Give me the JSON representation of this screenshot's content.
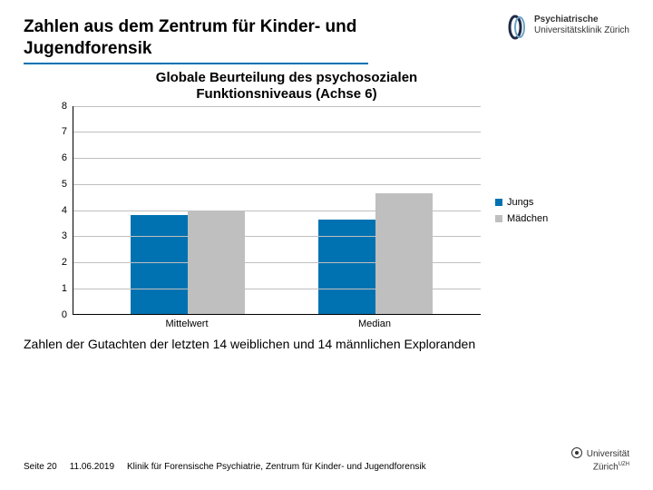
{
  "header": {
    "title_line1": "Zahlen aus dem Zentrum für Kinder- und",
    "title_line2": "Jugendforensik",
    "underline_color": "#0072b1"
  },
  "brand": {
    "line1": "Psychiatrische",
    "line2": "Universitätsklinik Zürich",
    "icon_color_dark": "#1f2a44",
    "icon_color_accent": "#6fa4c8"
  },
  "chart": {
    "type": "bar",
    "title_line1": "Globale Beurteilung des psychosozialen",
    "title_line2": "Funktionsniveaus (Achse 6)",
    "ylim": [
      0,
      8
    ],
    "ytick_step": 1,
    "grid_color": "#bfbfbf",
    "axis_color": "#000000",
    "background_color": "#ffffff",
    "categories": [
      "Mittelwert",
      "Median"
    ],
    "series": [
      {
        "name": "Jungs",
        "color": "#0072b1",
        "values": [
          3.78,
          3.6
        ]
      },
      {
        "name": "Mädchen",
        "color": "#bfbfbf",
        "values": [
          3.92,
          4.6
        ]
      }
    ],
    "bar_width_pct": 14,
    "group_gap_pct": 0,
    "legend_marker": "■",
    "title_fontsize": 15,
    "tick_fontsize": 11,
    "legend_fontsize": 11
  },
  "subnote": "Zahlen der Gutachten der letzten 14 weiblichen und 14 männlichen Exploranden",
  "footer": {
    "page_label": "Seite",
    "page_num": "20",
    "date": "11.06.2019",
    "org": "Klinik für Forensische Psychiatrie, Zentrum für Kinder- und Jugendforensik",
    "uzh_line1": "Universität",
    "uzh_line2": "Zürich",
    "uzh_suffix": "UZH"
  }
}
